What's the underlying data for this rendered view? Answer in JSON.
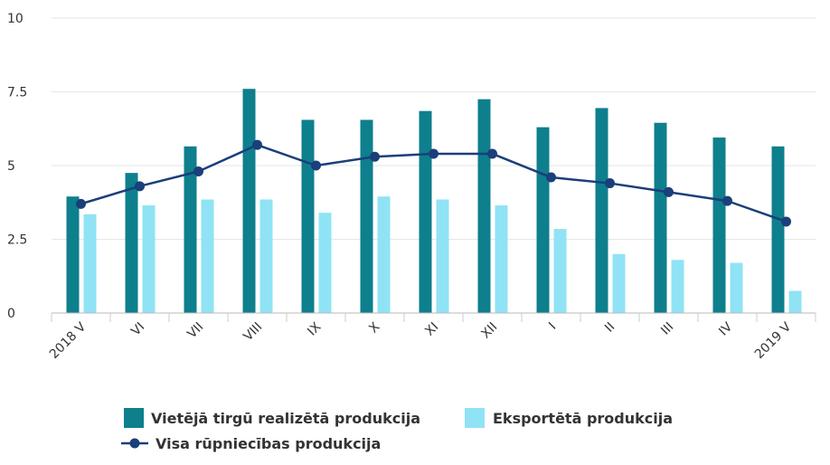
{
  "chart_data": {
    "type": "bar",
    "categories": [
      "2018 V",
      "VI",
      "VII",
      "VIII",
      "IX",
      "X",
      "XI",
      "XII",
      "I",
      "II",
      "III",
      "IV",
      "2019 V"
    ],
    "series": [
      {
        "name": "Vietējā tirgū realizētā produkcija",
        "type": "bar",
        "color": "#0e7f8d",
        "values": [
          3.95,
          4.75,
          5.65,
          7.6,
          6.55,
          6.55,
          6.85,
          7.25,
          6.3,
          6.95,
          6.45,
          5.95,
          5.65
        ]
      },
      {
        "name": "Eksportētā produkcija",
        "type": "bar",
        "color": "#8fe3f5",
        "values": [
          3.35,
          3.65,
          3.85,
          3.85,
          3.4,
          3.95,
          3.85,
          3.65,
          2.85,
          2.0,
          1.8,
          1.7,
          0.75
        ]
      },
      {
        "name": "Visa rūpniecības produkcija",
        "type": "line",
        "color": "#1a3f7a",
        "values": [
          3.7,
          4.3,
          4.8,
          5.7,
          5.0,
          5.3,
          5.4,
          5.4,
          4.6,
          4.4,
          4.1,
          3.8,
          3.1
        ]
      }
    ],
    "yticks": [
      "0",
      "2.5",
      "5",
      "7.5",
      "10"
    ],
    "ylim": [
      0,
      10
    ],
    "grid": true,
    "legend_position": "bottom"
  }
}
